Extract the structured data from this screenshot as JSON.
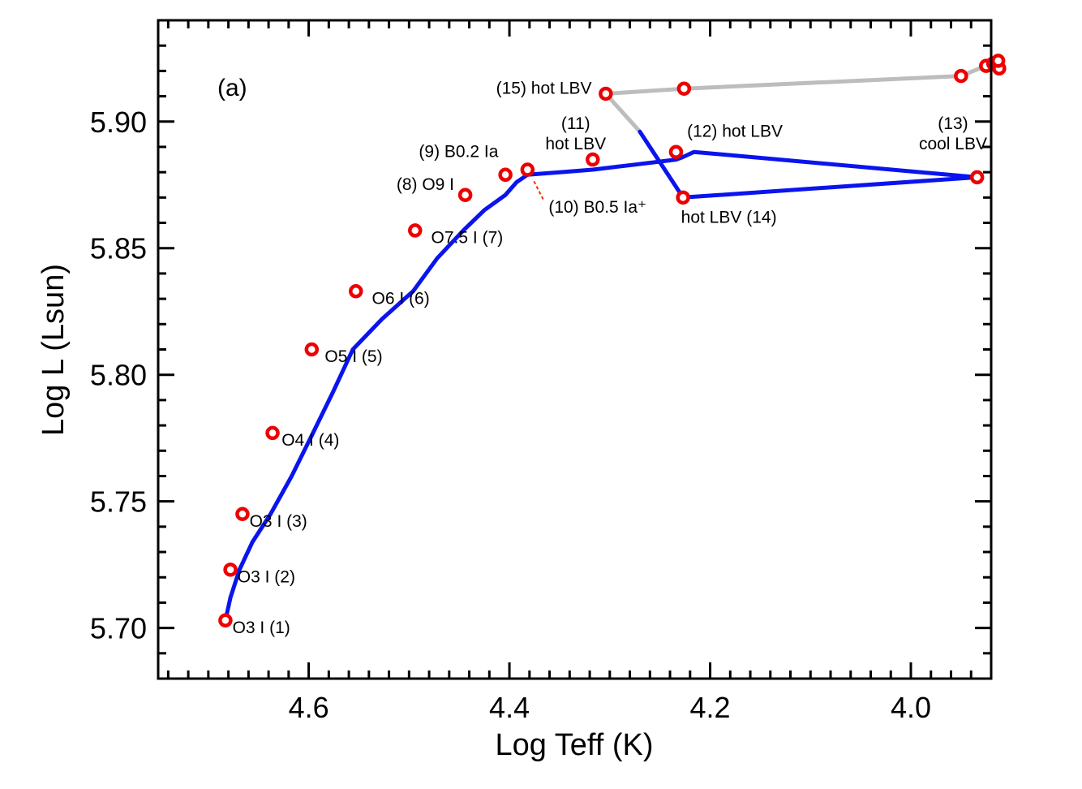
{
  "chart_data": {
    "type": "line",
    "panel_label": "(a)",
    "xlabel": "Log Teff (K)",
    "ylabel": "Log L (Lsun)",
    "xlim": [
      4.75,
      3.92
    ],
    "ylim": [
      5.68,
      5.94
    ],
    "x_inverted": true,
    "xticks": [
      4.6,
      4.4,
      4.2,
      4.0
    ],
    "xtick_labels": [
      "4.6",
      "4.4",
      "4.2",
      "4.0"
    ],
    "yticks": [
      5.7,
      5.75,
      5.8,
      5.85,
      5.9
    ],
    "ytick_labels": [
      "5.70",
      "5.75",
      "5.80",
      "5.85",
      "5.90"
    ],
    "colors": {
      "track": "#0a14ee",
      "track_later": "#bdbdbd",
      "marker": "#ee0000",
      "leader": "#ee3300"
    },
    "series": [
      {
        "x": [
          4.683,
          4.678,
          4.669,
          4.656,
          4.638,
          4.617,
          4.597,
          4.576,
          4.556,
          4.527,
          4.496,
          4.472,
          4.446,
          4.425,
          4.404,
          4.393,
          4.382,
          4.35,
          4.317,
          4.275,
          4.234,
          4.227,
          4.216,
          3.934,
          4.227,
          4.27
        ],
        "y": [
          5.703,
          5.712,
          5.723,
          5.734,
          5.745,
          5.76,
          5.776,
          5.793,
          5.81,
          5.822,
          5.833,
          5.846,
          5.857,
          5.865,
          5.871,
          5.876,
          5.879,
          5.88,
          5.881,
          5.883,
          5.885,
          5.886,
          5.888,
          5.878,
          5.87,
          5.896
        ]
      },
      {
        "x": [
          4.27,
          4.304,
          4.226,
          3.95,
          3.925,
          3.918,
          3.913
        ],
        "y": [
          5.896,
          5.911,
          5.913,
          5.918,
          5.922,
          5.923,
          5.924
        ]
      }
    ],
    "markers": {
      "x": [
        4.683,
        4.678,
        4.666,
        4.636,
        4.597,
        4.553,
        4.494,
        4.444,
        4.404,
        4.382,
        4.317,
        4.234,
        4.227,
        3.934,
        4.304,
        4.226,
        3.95,
        3.925,
        3.918,
        3.914,
        3.912,
        3.913
      ],
      "y": [
        5.703,
        5.723,
        5.745,
        5.777,
        5.81,
        5.833,
        5.857,
        5.871,
        5.879,
        5.881,
        5.885,
        5.888,
        5.87,
        5.878,
        5.911,
        5.913,
        5.918,
        5.922,
        5.923,
        5.922,
        5.921,
        5.924
      ]
    },
    "annotations": [
      {
        "lines": [
          "O3 I (1)"
        ],
        "x": 4.676,
        "y": 5.698,
        "align": "start"
      },
      {
        "lines": [
          "O3 I (2)"
        ],
        "x": 4.671,
        "y": 5.718,
        "align": "start"
      },
      {
        "lines": [
          "O3 I (3)"
        ],
        "x": 4.659,
        "y": 5.74,
        "align": "start"
      },
      {
        "lines": [
          "O4 I (4)"
        ],
        "x": 4.627,
        "y": 5.772,
        "align": "start"
      },
      {
        "lines": [
          "O5 I (5)"
        ],
        "x": 4.584,
        "y": 5.805,
        "align": "start"
      },
      {
        "lines": [
          "O6 I (6)"
        ],
        "x": 4.537,
        "y": 5.828,
        "align": "start"
      },
      {
        "lines": [
          "O7.5 I (7)"
        ],
        "x": 4.478,
        "y": 5.852,
        "align": "start"
      },
      {
        "lines": [
          "(8) O9 I"
        ],
        "x": 4.455,
        "y": 5.873,
        "align": "end"
      },
      {
        "lines": [
          "(9) B0.2 Ia"
        ],
        "x": 4.411,
        "y": 5.886,
        "align": "end"
      },
      {
        "lines": [
          "(10) B0.5 Ia⁺"
        ],
        "x": 4.361,
        "y": 5.864,
        "align": "start"
      },
      {
        "lines": [
          "(11)",
          "hot LBV"
        ],
        "x": 4.334,
        "y": 5.897,
        "align": "middle"
      },
      {
        "lines": [
          "(12)  hot LBV"
        ],
        "x": 4.223,
        "y": 5.894,
        "align": "start"
      },
      {
        "lines": [
          "(13)",
          "cool LBV"
        ],
        "x": 3.958,
        "y": 5.897,
        "align": "middle"
      },
      {
        "lines": [
          "hot LBV (14)"
        ],
        "x": 4.229,
        "y": 5.86,
        "align": "start"
      },
      {
        "lines": [
          "(15) hot LBV"
        ],
        "x": 4.318,
        "y": 5.911,
        "align": "end"
      }
    ]
  }
}
